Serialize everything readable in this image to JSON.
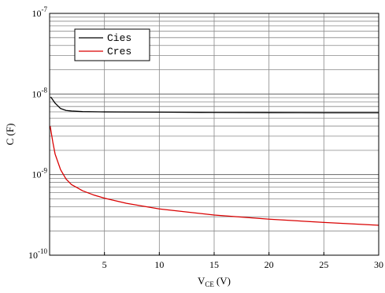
{
  "chart_data": {
    "type": "line",
    "title": "",
    "xlabel": {
      "main": "V",
      "sub": "CE",
      "unit": "(V)"
    },
    "ylabel": "C (F)",
    "xlim": [
      0,
      30
    ],
    "ylim": [
      1e-10,
      1e-07
    ],
    "yscale": "log",
    "grid": true,
    "legend_position": "top-left",
    "x_ticks": [
      5,
      10,
      15,
      20,
      25,
      30
    ],
    "x_tick_labels": [
      "5",
      "10",
      "15",
      "20",
      "25",
      "30"
    ],
    "y_ticks": [
      {
        "value": 1e-07,
        "base": "10",
        "exp": "-7"
      },
      {
        "value": 1e-08,
        "base": "10",
        "exp": "-8"
      },
      {
        "value": 1e-09,
        "base": "10",
        "exp": "-9"
      },
      {
        "value": 1e-10,
        "base": "10",
        "exp": "-10"
      }
    ],
    "series": [
      {
        "name": "Cies",
        "color": "#000000",
        "x": [
          0.1,
          0.5,
          1,
          1.5,
          2,
          3,
          5,
          10,
          15,
          20,
          25,
          30
        ],
        "y": [
          9.2e-09,
          7.7e-09,
          6.6e-09,
          6.25e-09,
          6.15e-09,
          6.05e-09,
          6e-09,
          5.95e-09,
          5.9e-09,
          5.88e-09,
          5.86e-09,
          5.85e-09
        ]
      },
      {
        "name": "Cres",
        "color": "#d90000",
        "x": [
          0.05,
          0.3,
          0.5,
          1,
          1.5,
          2,
          2.5,
          3,
          4,
          5,
          7,
          10,
          15,
          20,
          25,
          30
        ],
        "y": [
          4e-09,
          2.5e-09,
          1.8e-09,
          1.15e-09,
          8.8e-10,
          7.5e-10,
          6.9e-10,
          6.3e-10,
          5.6e-10,
          5.1e-10,
          4.4e-10,
          3.75e-10,
          3.15e-10,
          2.8e-10,
          2.55e-10,
          2.35e-10
        ]
      }
    ]
  }
}
